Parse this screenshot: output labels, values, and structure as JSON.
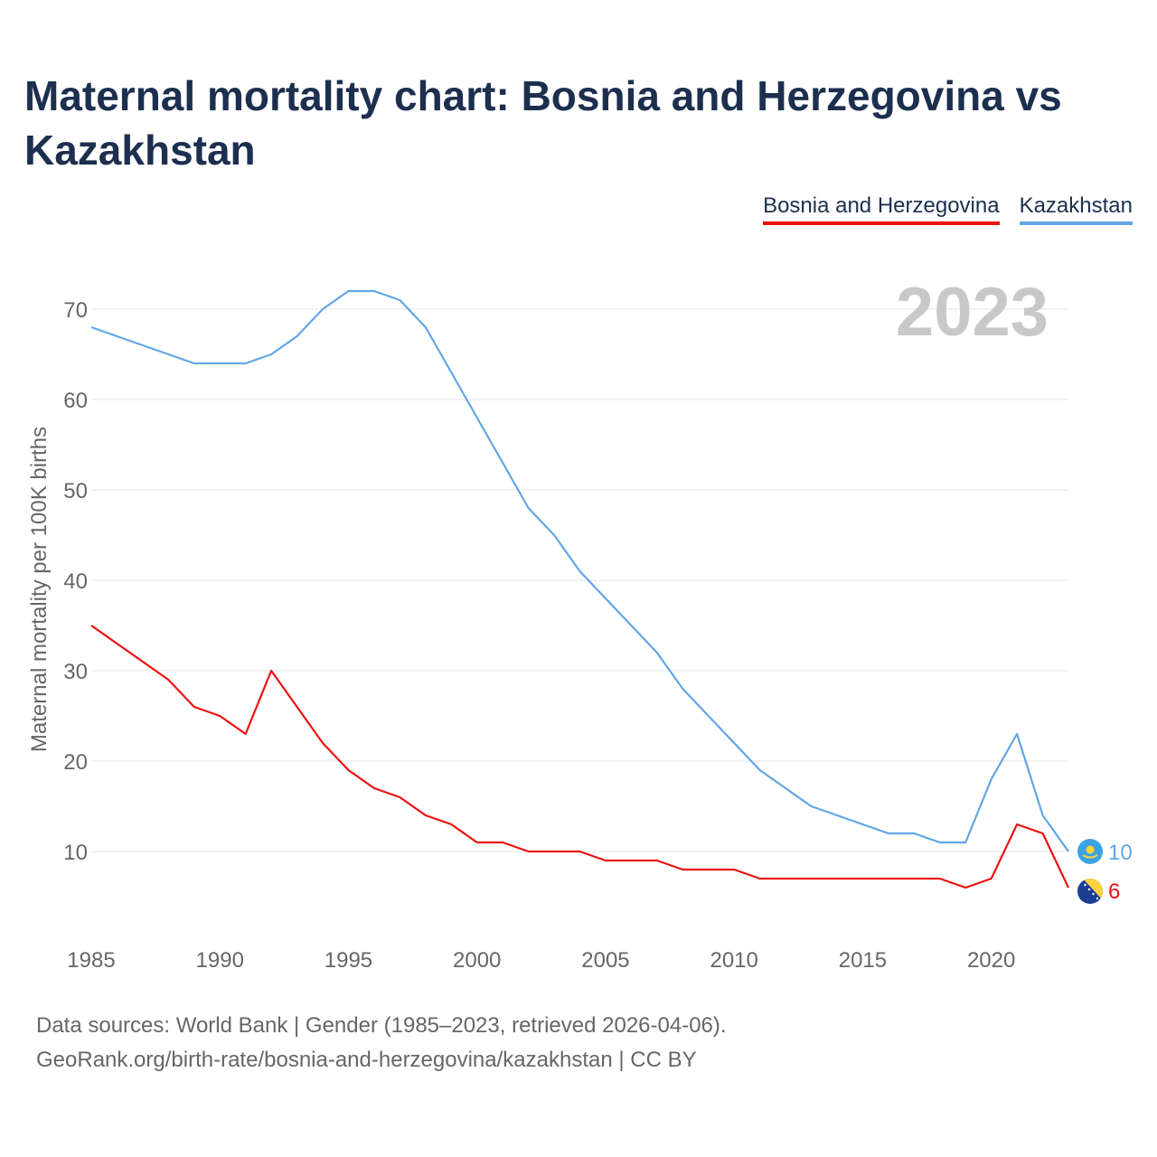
{
  "title": "Maternal mortality chart: Bosnia and Herzegovina vs Kazakhstan",
  "footer": {
    "source": "Data sources: World Bank | Gender (1985–2023, retrieved 2026-04-06).",
    "link": "GeoRank.org/birth-rate/bosnia-and-herzegovina/kazakhstan | CC BY"
  },
  "colors": {
    "bih": "#ee1111",
    "kaz": "#62a6e6",
    "year": "#c8c8c8",
    "grid": "#e6e6e6",
    "tick": "#666666"
  },
  "chart_data": {
    "type": "line",
    "title": "Maternal mortality chart: Bosnia and Herzegovina vs Kazakhstan",
    "ylabel": "Maternal mortality per 100K births",
    "xlabel": "",
    "year_label": "2023",
    "xlim": [
      1985,
      2023
    ],
    "ylim": [
      2,
      74
    ],
    "xticks": [
      1985,
      1990,
      1995,
      2000,
      2005,
      2010,
      2015,
      2020
    ],
    "yticks": [
      10,
      20,
      30,
      40,
      50,
      60,
      70
    ],
    "grid": true,
    "legend_position": "top-right",
    "x": [
      1985,
      1986,
      1987,
      1988,
      1989,
      1990,
      1991,
      1992,
      1993,
      1994,
      1995,
      1996,
      1997,
      1998,
      1999,
      2000,
      2001,
      2002,
      2003,
      2004,
      2005,
      2006,
      2007,
      2008,
      2009,
      2010,
      2011,
      2012,
      2013,
      2014,
      2015,
      2016,
      2017,
      2018,
      2019,
      2020,
      2021,
      2022,
      2023
    ],
    "series": [
      {
        "name": "Bosnia and Herzegovina",
        "key": "bih",
        "end_label": "6",
        "flag_icon": "bosnia-flag-icon",
        "values": [
          35,
          33,
          31,
          29,
          26,
          25,
          23,
          30,
          26,
          22,
          19,
          17,
          16,
          14,
          13,
          11,
          11,
          10,
          10,
          10,
          9,
          9,
          9,
          8,
          8,
          8,
          7,
          7,
          7,
          7,
          7,
          7,
          7,
          7,
          6,
          7,
          13,
          12,
          6
        ]
      },
      {
        "name": "Kazakhstan",
        "key": "kaz",
        "end_label": "10",
        "flag_icon": "kazakhstan-flag-icon",
        "values": [
          68,
          67,
          66,
          65,
          64,
          64,
          64,
          65,
          67,
          70,
          72,
          72,
          71,
          68,
          63,
          58,
          53,
          48,
          45,
          41,
          38,
          35,
          32,
          28,
          25,
          22,
          19,
          17,
          15,
          14,
          13,
          12,
          12,
          11,
          11,
          18,
          23,
          14,
          10
        ]
      }
    ]
  }
}
